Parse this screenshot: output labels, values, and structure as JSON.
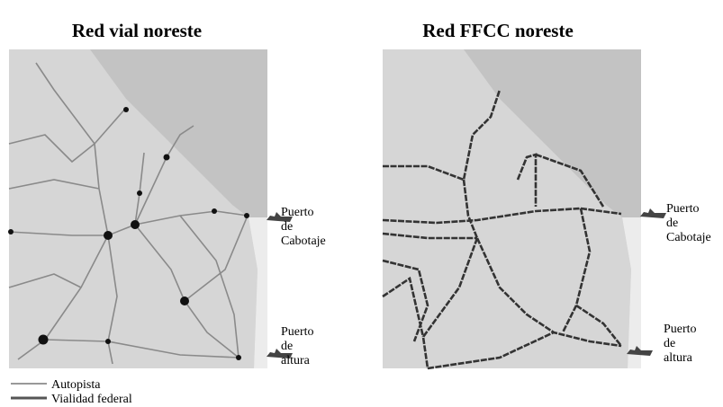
{
  "maps": [
    {
      "title": "Red vial noreste",
      "ports": [
        [
          "Puerto",
          "de",
          "Cabotaje"
        ],
        [
          "Puerto",
          "de",
          "altura"
        ]
      ]
    },
    {
      "title": "Red FFCC noreste",
      "ports": [
        [
          "Puerto",
          "de",
          "Cabotaje"
        ],
        [
          "Puerto",
          "de",
          "altura"
        ]
      ]
    }
  ],
  "legend": [
    "Autopista",
    "Vialidad federal"
  ]
}
